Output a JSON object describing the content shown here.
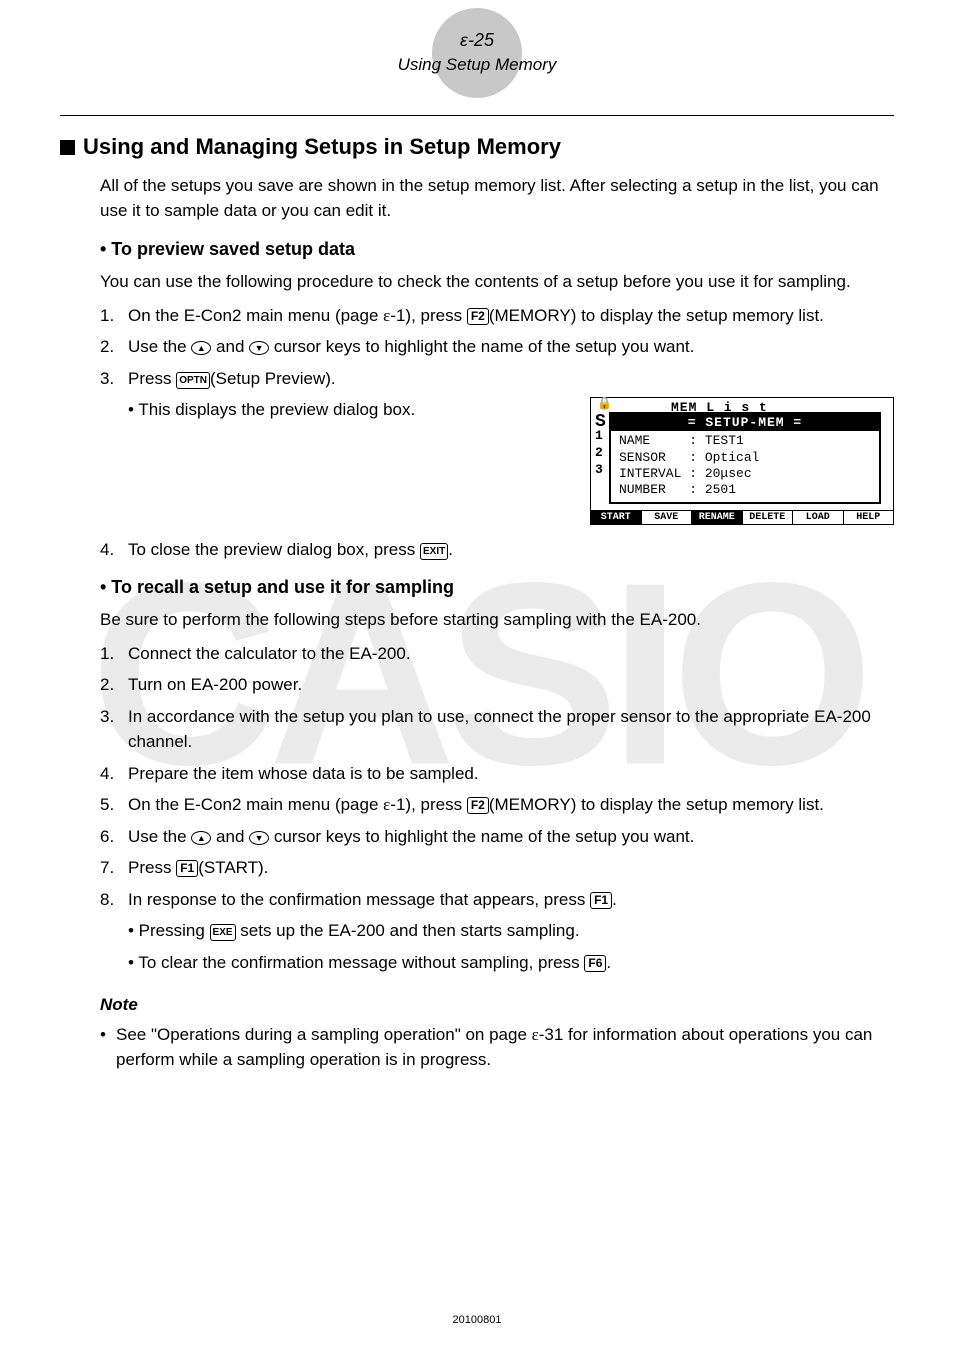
{
  "header": {
    "page_num": "ε-25",
    "title": "Using Setup Memory"
  },
  "h2": "Using and Managing Setups in Setup Memory",
  "intro": "All of the setups you save are shown in the setup memory list. After selecting a setup in the list, you can use it to sample data or you can edit it.",
  "section1": {
    "title": "• To preview saved setup data",
    "lead": "You can use the following procedure to check the contents of a setup before you use it for sampling.",
    "step1_a": "On the E-Con2 main menu (page ",
    "step1_eps": "ε",
    "step1_b": "-1), press ",
    "step1_key": "F2",
    "step1_c": "(MEMORY) to display the setup memory list.",
    "step2_a": "Use the ",
    "step2_b": " and ",
    "step2_c": " cursor keys to highlight the name of the setup you want.",
    "step3_a": "Press ",
    "step3_key": "OPTN",
    "step3_b": "(Setup Preview).",
    "step3_sub": "• This displays the preview dialog box.",
    "step4_a": "To close the preview dialog box, press ",
    "step4_key": "EXIT",
    "step4_b": "."
  },
  "screen": {
    "bg_text": "MEM  L i s t",
    "lock": "🔒",
    "s": "S",
    "side": "1\n2\n3",
    "dlg_title": "= SETUP-MEM =",
    "dlg_body": "NAME     : TEST1\nSENSOR   : Optical\nINTERVAL : 20μsec\nNUMBER   : 2501",
    "fkeys": [
      "START",
      "SAVE",
      "RENAME",
      "DELETE",
      "LOAD",
      "HELP"
    ],
    "fkey_inv": [
      true,
      false,
      true,
      false,
      false,
      false
    ]
  },
  "section2": {
    "title": "• To recall a setup and use it for sampling",
    "lead": "Be sure to perform the following steps before starting sampling with the EA-200.",
    "step1": "Connect the calculator to the EA-200.",
    "step2": "Turn on EA-200 power.",
    "step3": "In accordance with the setup you plan to use, connect the proper sensor to the appropriate EA-200 channel.",
    "step4": "Prepare the item whose data is to be sampled.",
    "step5_a": "On the E-Con2 main menu (page ",
    "step5_eps": "ε",
    "step5_b": "-1), press ",
    "step5_key": "F2",
    "step5_c": "(MEMORY) to display the setup memory list.",
    "step6_a": "Use the ",
    "step6_b": " and ",
    "step6_c": " cursor keys to highlight the name of the setup you want.",
    "step7_a": "Press ",
    "step7_key": "F1",
    "step7_b": "(START).",
    "step8_a": "In response to the confirmation message that appears, press ",
    "step8_key": "F1",
    "step8_b": ".",
    "step8_sub1_a": "• Pressing ",
    "step8_sub1_key": "EXE",
    "step8_sub1_b": " sets up the EA-200 and then starts sampling.",
    "step8_sub2_a": "• To clear the confirmation message without sampling, press ",
    "step8_sub2_key": "F6",
    "step8_sub2_b": "."
  },
  "note": {
    "heading": "Note",
    "body_a": "See \"Operations during a sampling operation\" on page ",
    "body_eps": "ε",
    "body_b": "-31 for information about operations you can perform while a sampling operation is in progress."
  },
  "footer": "20100801",
  "watermark": "CASIO"
}
